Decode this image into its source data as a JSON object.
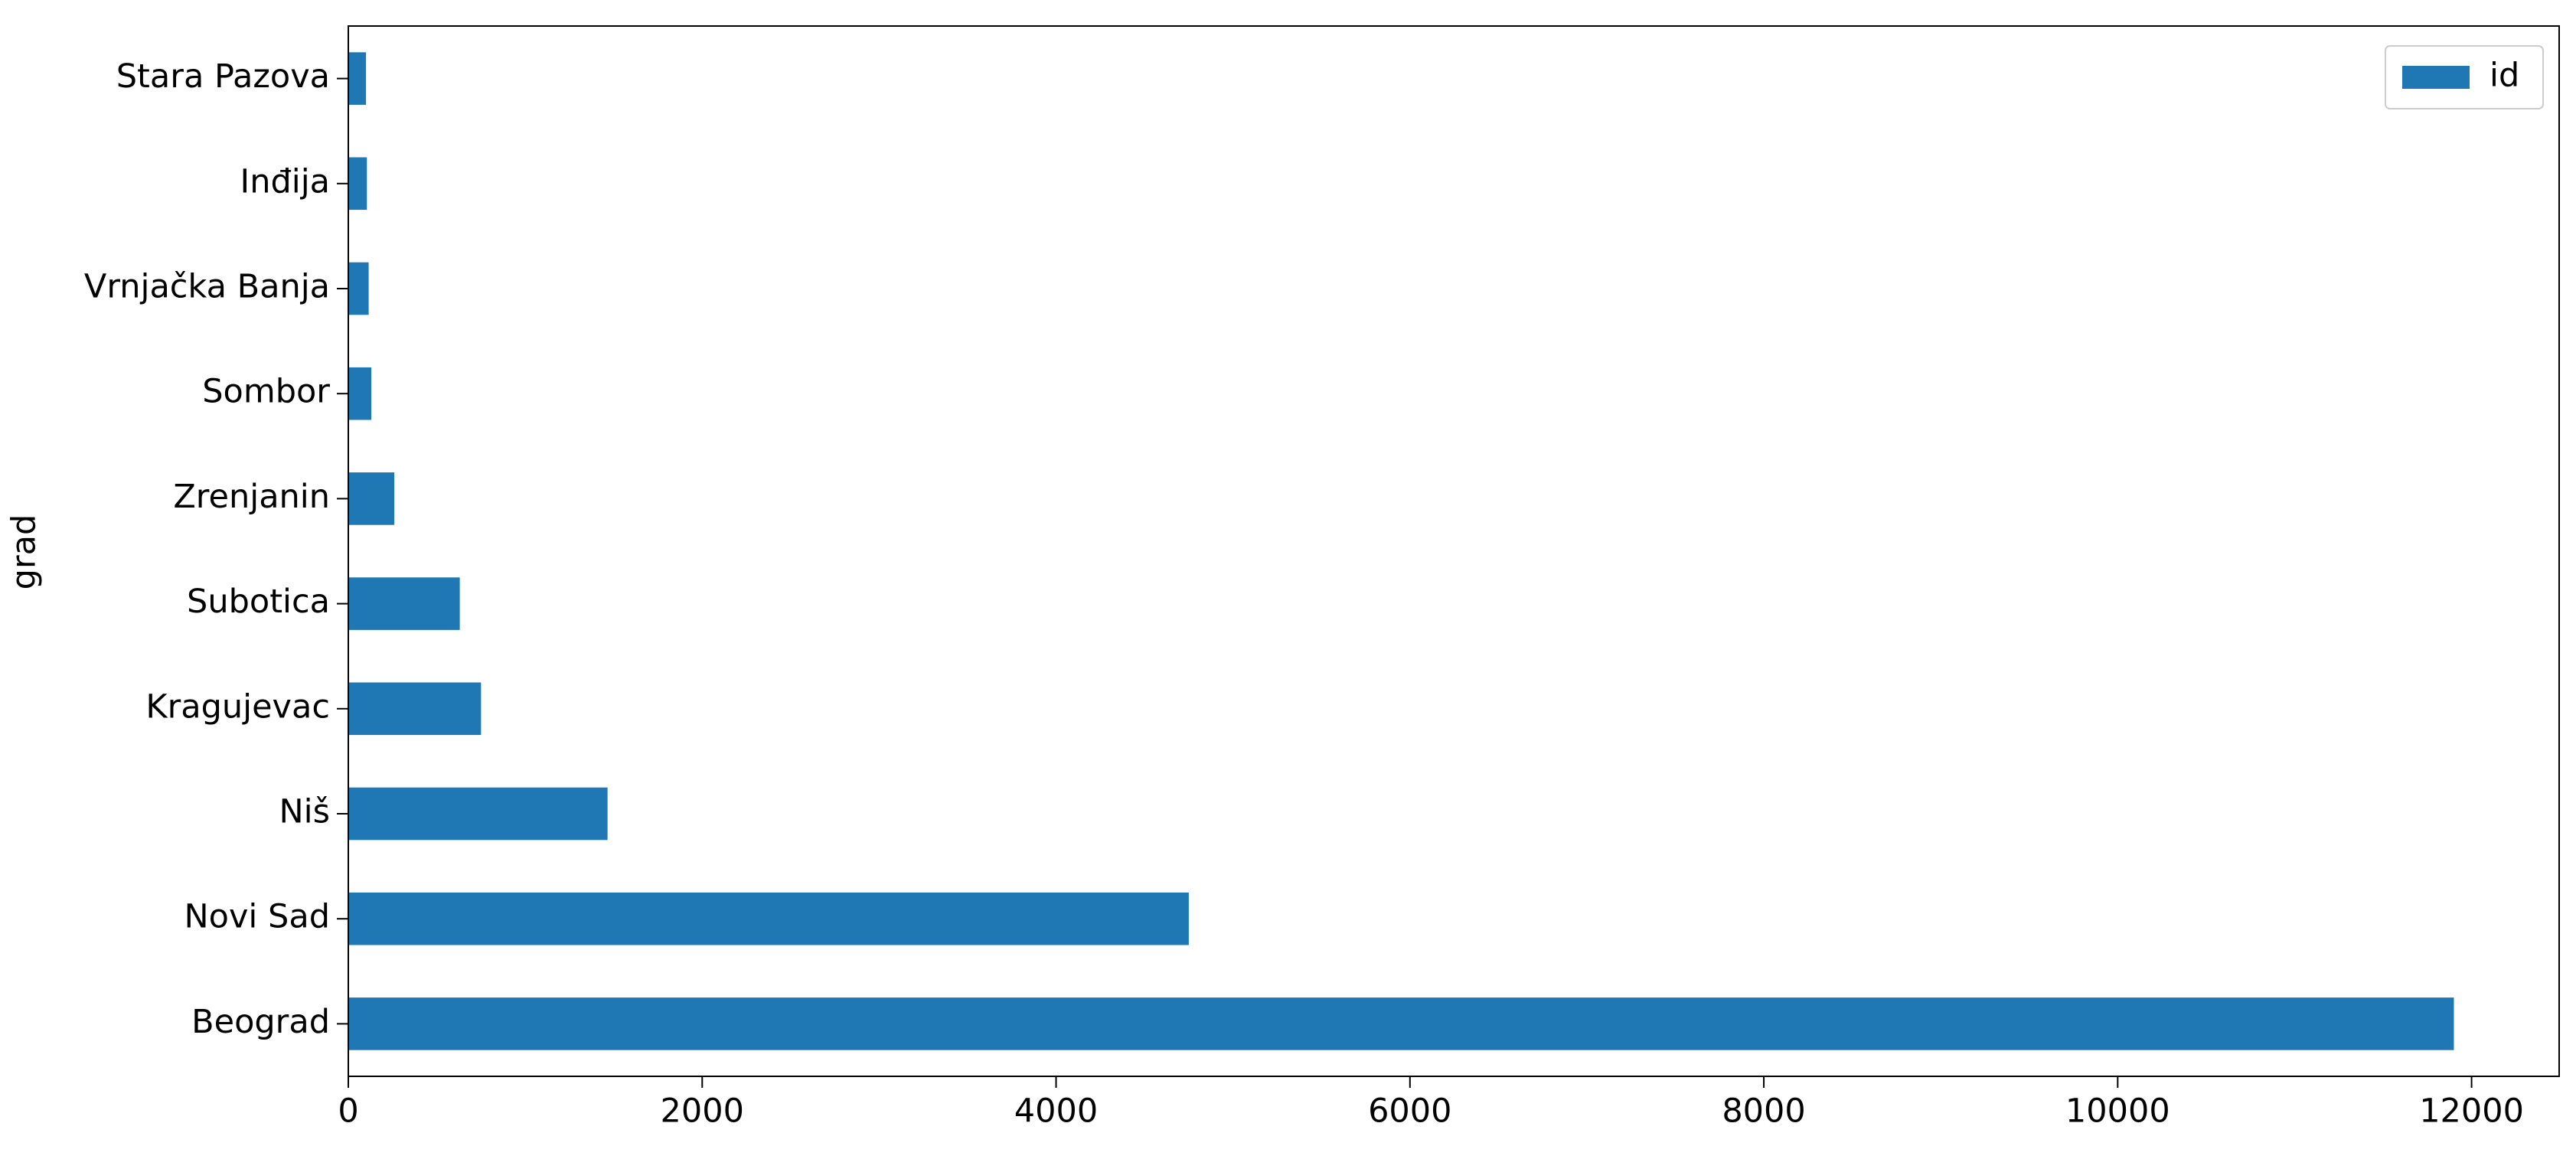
{
  "chart_data": {
    "type": "barh",
    "ylabel": "grad",
    "categories": [
      "Beograd",
      "Novi Sad",
      "Niš",
      "Kragujevac",
      "Subotica",
      "Zrenjanin",
      "Sombor",
      "Vrnjačka Banja",
      "Inđija",
      "Stara Pazova"
    ],
    "series": [
      {
        "name": "id",
        "color": "#1f77b4",
        "values": [
          11900,
          4750,
          1465,
          750,
          630,
          260,
          130,
          115,
          105,
          100
        ]
      }
    ],
    "xlim": [
      0,
      12495
    ],
    "xticks": [
      0,
      2000,
      4000,
      6000,
      8000,
      10000,
      12000
    ],
    "legend": "upper right",
    "grid": false
  }
}
